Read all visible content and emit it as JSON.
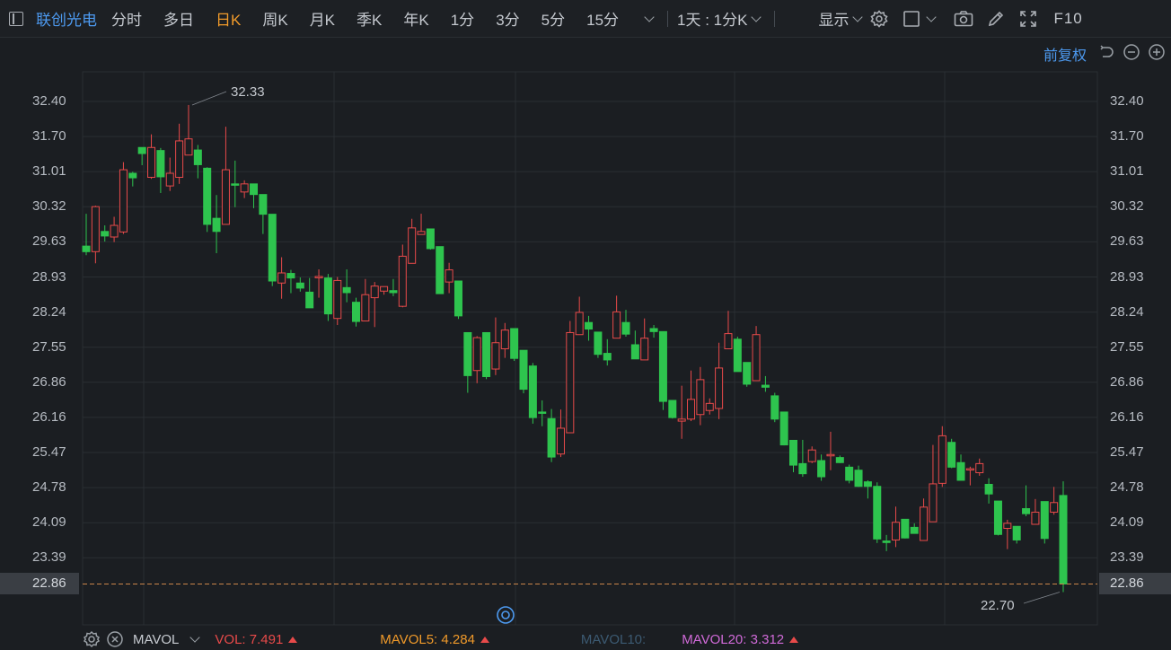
{
  "toolbar": {
    "stock_name": "联创光电",
    "periods": [
      "分时",
      "多日",
      "日K",
      "周K",
      "月K",
      "季K",
      "年K",
      "1分",
      "3分",
      "5分",
      "15分"
    ],
    "active_period": "日K",
    "range_select": "1天 : 1分K",
    "display_label": "显示",
    "f10_label": "F10"
  },
  "chart": {
    "adjust_label": "前复权",
    "price_ticks": [
      "32.40",
      "31.70",
      "31.01",
      "30.32",
      "29.63",
      "28.93",
      "28.24",
      "27.55",
      "26.86",
      "26.16",
      "25.47",
      "24.78",
      "24.09",
      "23.39"
    ],
    "current_price": "22.86",
    "max_label": "32.33",
    "min_label": "22.70",
    "colors": {
      "up": "#e84a4a",
      "down": "#2ec44e",
      "grid": "#2a2e33",
      "current_line": "#c9854a"
    }
  },
  "chart_data": {
    "type": "candlestick",
    "ylim": [
      22.4,
      32.9
    ],
    "candles": [
      [
        29.54,
        29.43,
        30.18,
        29.36
      ],
      [
        29.43,
        30.32,
        30.34,
        29.2
      ],
      [
        29.83,
        29.74,
        29.95,
        29.63
      ],
      [
        29.72,
        29.95,
        30.12,
        29.62
      ],
      [
        29.82,
        31.05,
        31.2,
        29.78
      ],
      [
        30.98,
        30.89,
        31.01,
        30.72
      ],
      [
        31.49,
        31.37,
        31.49,
        31.14
      ],
      [
        30.9,
        31.49,
        31.75,
        30.87
      ],
      [
        31.43,
        30.91,
        31.48,
        30.59
      ],
      [
        30.73,
        30.98,
        31.29,
        30.63
      ],
      [
        30.9,
        31.62,
        31.96,
        30.77
      ],
      [
        31.34,
        31.66,
        32.33,
        31.35
      ],
      [
        31.44,
        31.15,
        31.54,
        30.88
      ],
      [
        31.08,
        29.97,
        31.1,
        29.82
      ],
      [
        30.09,
        29.83,
        30.55,
        29.4
      ],
      [
        29.97,
        31.05,
        31.9,
        30.31
      ],
      [
        30.77,
        30.75,
        31.23,
        30.31
      ],
      [
        30.61,
        30.77,
        30.84,
        30.49
      ],
      [
        30.77,
        30.56,
        30.77,
        30.29
      ],
      [
        30.56,
        30.17,
        30.42,
        29.78
      ],
      [
        30.17,
        28.85,
        30.12,
        28.75
      ],
      [
        28.81,
        29.01,
        29.32,
        28.5
      ],
      [
        29.0,
        28.91,
        29.07,
        28.61
      ],
      [
        28.81,
        28.71,
        28.92,
        28.64
      ],
      [
        28.63,
        28.32,
        28.91,
        28.34
      ],
      [
        28.93,
        28.94,
        29.08,
        28.52
      ],
      [
        28.91,
        28.2,
        28.99,
        28.06
      ],
      [
        28.11,
        28.86,
        28.93,
        27.98
      ],
      [
        28.72,
        28.62,
        29.08,
        28.43
      ],
      [
        28.43,
        28.05,
        28.52,
        27.95
      ],
      [
        28.06,
        28.58,
        28.89,
        28.06
      ],
      [
        28.52,
        28.75,
        28.83,
        27.94
      ],
      [
        28.65,
        28.74,
        28.7,
        28.58
      ],
      [
        28.66,
        28.62,
        28.89,
        28.55
      ],
      [
        28.35,
        29.34,
        29.57,
        28.33
      ],
      [
        29.2,
        29.9,
        30.08,
        29.32
      ],
      [
        29.77,
        29.83,
        30.18,
        29.79
      ],
      [
        29.88,
        29.49,
        29.83,
        29.47
      ],
      [
        29.53,
        28.6,
        29.28,
        28.66
      ],
      [
        28.83,
        29.07,
        29.21,
        28.61
      ],
      [
        28.85,
        28.16,
        28.85,
        28.1
      ],
      [
        27.83,
        26.98,
        27.8,
        26.64
      ],
      [
        27.08,
        27.73,
        27.76,
        26.83
      ],
      [
        27.83,
        26.96,
        27.82,
        26.91
      ],
      [
        27.11,
        27.63,
        28.13,
        26.99
      ],
      [
        27.51,
        27.88,
        28.02,
        27.33
      ],
      [
        27.91,
        27.32,
        27.91,
        27.27
      ],
      [
        27.48,
        26.71,
        27.36,
        26.63
      ],
      [
        27.17,
        26.15,
        27.23,
        26.03
      ],
      [
        26.26,
        26.25,
        26.49,
        25.98
      ],
      [
        26.13,
        25.37,
        26.32,
        25.27
      ],
      [
        25.43,
        25.94,
        26.31,
        25.37
      ],
      [
        25.85,
        27.83,
        28.06,
        26.25
      ],
      [
        27.79,
        28.23,
        28.54,
        27.81
      ],
      [
        28.03,
        27.9,
        28.16,
        27.67
      ],
      [
        27.84,
        27.4,
        27.83,
        27.33
      ],
      [
        27.42,
        27.29,
        27.7,
        27.18
      ],
      [
        27.72,
        28.24,
        28.56,
        27.72
      ],
      [
        28.03,
        27.8,
        28.28,
        27.75
      ],
      [
        27.59,
        27.31,
        27.87,
        27.43
      ],
      [
        27.29,
        27.72,
        28.11,
        27.38
      ],
      [
        27.91,
        27.85,
        27.98,
        27.73
      ],
      [
        27.85,
        26.47,
        27.79,
        26.3
      ],
      [
        26.49,
        26.15,
        26.46,
        26.13
      ],
      [
        26.08,
        26.12,
        26.78,
        25.73
      ],
      [
        26.12,
        26.51,
        27.08,
        26.08
      ],
      [
        26.21,
        26.9,
        27.15,
        26.0
      ],
      [
        26.29,
        26.43,
        26.53,
        26.21
      ],
      [
        26.33,
        27.13,
        27.63,
        26.12
      ],
      [
        27.51,
        27.81,
        28.26,
        27.57
      ],
      [
        27.7,
        27.06,
        27.75,
        27.12
      ],
      [
        27.24,
        26.81,
        26.99,
        26.76
      ],
      [
        26.88,
        27.79,
        27.96,
        27.1
      ],
      [
        26.79,
        26.75,
        26.97,
        26.66
      ],
      [
        26.58,
        26.12,
        26.64,
        26.06
      ],
      [
        26.26,
        25.61,
        26.23,
        25.6
      ],
      [
        25.7,
        25.21,
        25.63,
        25.07
      ],
      [
        25.24,
        25.04,
        25.71,
        24.98
      ],
      [
        25.28,
        25.51,
        25.58,
        25.25
      ],
      [
        25.3,
        24.98,
        25.42,
        24.9
      ],
      [
        25.4,
        25.42,
        25.87,
        25.11
      ],
      [
        25.36,
        25.26,
        25.4,
        25.25
      ],
      [
        25.17,
        24.91,
        25.22,
        24.85
      ],
      [
        25.11,
        24.79,
        25.2,
        24.78
      ],
      [
        24.88,
        24.79,
        24.91,
        24.55
      ],
      [
        24.79,
        23.75,
        24.87,
        23.67
      ],
      [
        23.71,
        23.68,
        23.83,
        23.51
      ],
      [
        23.73,
        24.08,
        24.39,
        23.59
      ],
      [
        24.14,
        23.77,
        24.05,
        23.76
      ],
      [
        23.98,
        23.86,
        24.06,
        23.9
      ],
      [
        23.72,
        24.38,
        24.55,
        23.99
      ],
      [
        24.09,
        24.84,
        25.61,
        24.17
      ],
      [
        24.85,
        25.79,
        25.98,
        24.78
      ],
      [
        25.66,
        25.17,
        25.73,
        25.15
      ],
      [
        25.26,
        24.91,
        25.42,
        24.91
      ],
      [
        25.13,
        25.14,
        25.18,
        24.81
      ],
      [
        25.06,
        25.24,
        25.34,
        25.0
      ],
      [
        24.83,
        24.64,
        24.95,
        24.45
      ],
      [
        24.5,
        23.84,
        24.16,
        23.82
      ],
      [
        23.96,
        24.06,
        24.13,
        23.55
      ],
      [
        24.0,
        23.73,
        23.84,
        23.66
      ],
      [
        24.35,
        24.25,
        24.81,
        24.2
      ],
      [
        24.04,
        24.28,
        24.54,
        24.07
      ],
      [
        24.49,
        23.76,
        24.18,
        23.66
      ],
      [
        24.28,
        24.47,
        24.78,
        24.23
      ],
      [
        24.61,
        22.86,
        24.89,
        22.7
      ]
    ]
  },
  "footer": {
    "indicator": "MAVOL",
    "vol": "VOL: 7.491",
    "mavol5": "MAVOL5: 4.284",
    "mavol10": "MAVOL10:",
    "mavol20": "MAVOL20: 3.312"
  }
}
